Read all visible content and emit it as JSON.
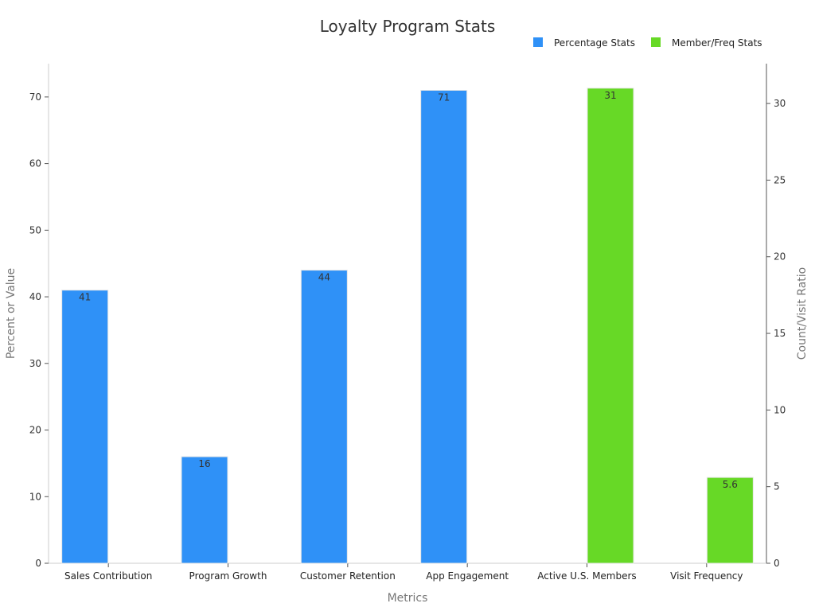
{
  "chart_data": {
    "type": "bar",
    "title": "Loyalty Program Stats",
    "xlabel": "Metrics",
    "ylabel": "Percent or Value",
    "y2label": "Count/Visit Ratio",
    "categories": [
      "Sales Contribution",
      "Program Growth",
      "Customer Retention",
      "App Engagement",
      "Active U.S. Members",
      "Visit Frequency"
    ],
    "ylim": [
      0,
      75
    ],
    "y2lim": [
      0,
      32.6
    ],
    "yticks": [
      0,
      10,
      20,
      30,
      40,
      50,
      60,
      70
    ],
    "y2ticks": [
      0,
      5,
      10,
      15,
      20,
      25,
      30
    ],
    "legend_position": "top-right",
    "grid": false,
    "series": [
      {
        "name": "Percentage Stats",
        "axis": "left",
        "color": "#2f91f7",
        "values": [
          41,
          16,
          44,
          71,
          null,
          null
        ],
        "labels": [
          "41",
          "16",
          "44",
          "71",
          "",
          ""
        ]
      },
      {
        "name": "Member/Freq Stats",
        "axis": "right",
        "color": "#67d926",
        "values": [
          null,
          null,
          null,
          null,
          31,
          5.6
        ],
        "labels": [
          "",
          "",
          "",
          "",
          "31",
          "5.6"
        ]
      }
    ]
  }
}
